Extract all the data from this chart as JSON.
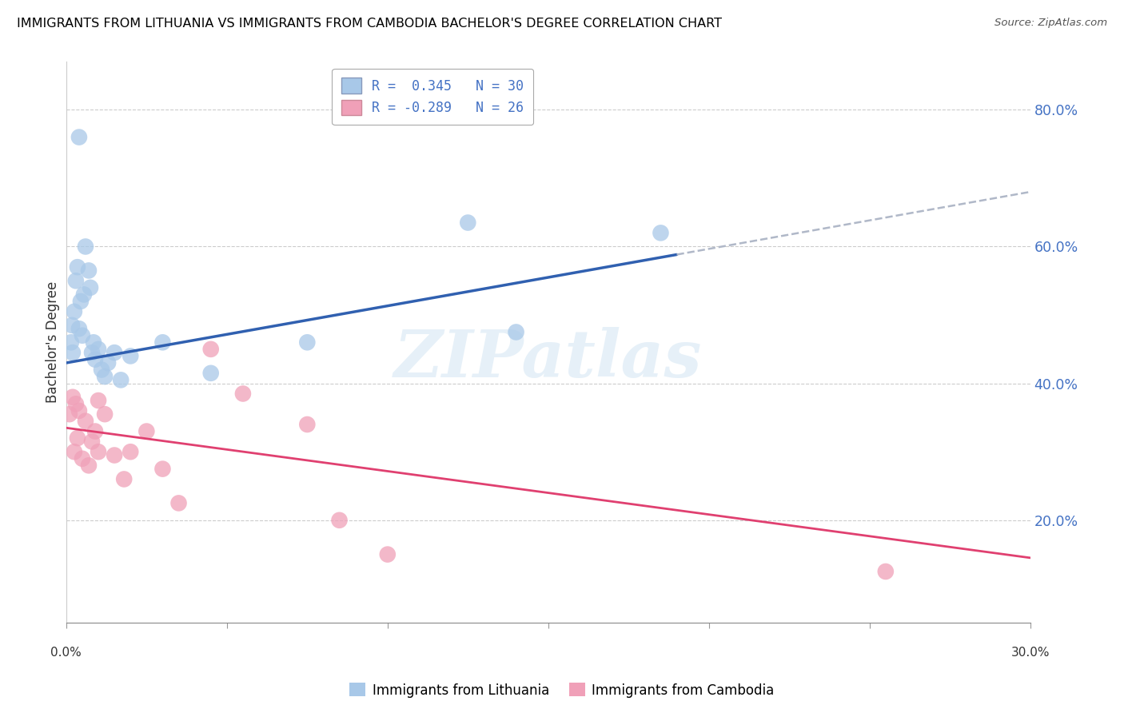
{
  "title": "IMMIGRANTS FROM LITHUANIA VS IMMIGRANTS FROM CAMBODIA BACHELOR'S DEGREE CORRELATION CHART",
  "source": "Source: ZipAtlas.com",
  "ylabel": "Bachelor's Degree",
  "xlim": [
    0.0,
    30.0
  ],
  "ylim": [
    5.0,
    87.0
  ],
  "yticks": [
    20.0,
    40.0,
    60.0,
    80.0
  ],
  "ytick_labels": [
    "20.0%",
    "40.0%",
    "60.0%",
    "80.0%"
  ],
  "blue_color": "#a8c8e8",
  "blue_line_color": "#3060b0",
  "blue_line_solid_end": 19.0,
  "pink_color": "#f0a0b8",
  "pink_line_color": "#e04070",
  "watermark_text": "ZIPatlas",
  "blue_R": 0.345,
  "blue_N": 30,
  "pink_R": -0.289,
  "pink_N": 26,
  "blue_line_x0": 0.0,
  "blue_line_y0": 43.0,
  "blue_line_x1": 30.0,
  "blue_line_y1": 68.0,
  "pink_line_x0": 0.0,
  "pink_line_y0": 33.5,
  "pink_line_x1": 30.0,
  "pink_line_y1": 14.5,
  "blue_scatter_x": [
    0.15,
    0.18,
    0.2,
    0.25,
    0.3,
    0.35,
    0.4,
    0.45,
    0.5,
    0.55,
    0.6,
    0.7,
    0.75,
    0.8,
    0.85,
    0.9,
    1.0,
    1.1,
    1.2,
    1.3,
    1.5,
    1.7,
    2.0,
    3.0,
    4.5,
    7.5,
    12.5,
    14.0,
    18.5,
    0.4
  ],
  "blue_scatter_y": [
    46.0,
    48.5,
    44.5,
    50.5,
    55.0,
    57.0,
    48.0,
    52.0,
    47.0,
    53.0,
    60.0,
    56.5,
    54.0,
    44.5,
    46.0,
    43.5,
    45.0,
    42.0,
    41.0,
    43.0,
    44.5,
    40.5,
    44.0,
    46.0,
    41.5,
    46.0,
    63.5,
    47.5,
    62.0,
    76.0
  ],
  "pink_scatter_x": [
    0.1,
    0.2,
    0.25,
    0.3,
    0.35,
    0.4,
    0.5,
    0.6,
    0.7,
    0.8,
    0.9,
    1.0,
    1.2,
    1.5,
    1.8,
    2.0,
    2.5,
    3.0,
    3.5,
    4.5,
    5.5,
    7.5,
    8.5,
    10.0,
    25.5,
    1.0
  ],
  "pink_scatter_y": [
    35.5,
    38.0,
    30.0,
    37.0,
    32.0,
    36.0,
    29.0,
    34.5,
    28.0,
    31.5,
    33.0,
    30.0,
    35.5,
    29.5,
    26.0,
    30.0,
    33.0,
    27.5,
    22.5,
    45.0,
    38.5,
    34.0,
    20.0,
    15.0,
    12.5,
    37.5
  ],
  "legend_r1_label": "R =  0.345   N = 30",
  "legend_r2_label": "R = -0.289   N = 26"
}
